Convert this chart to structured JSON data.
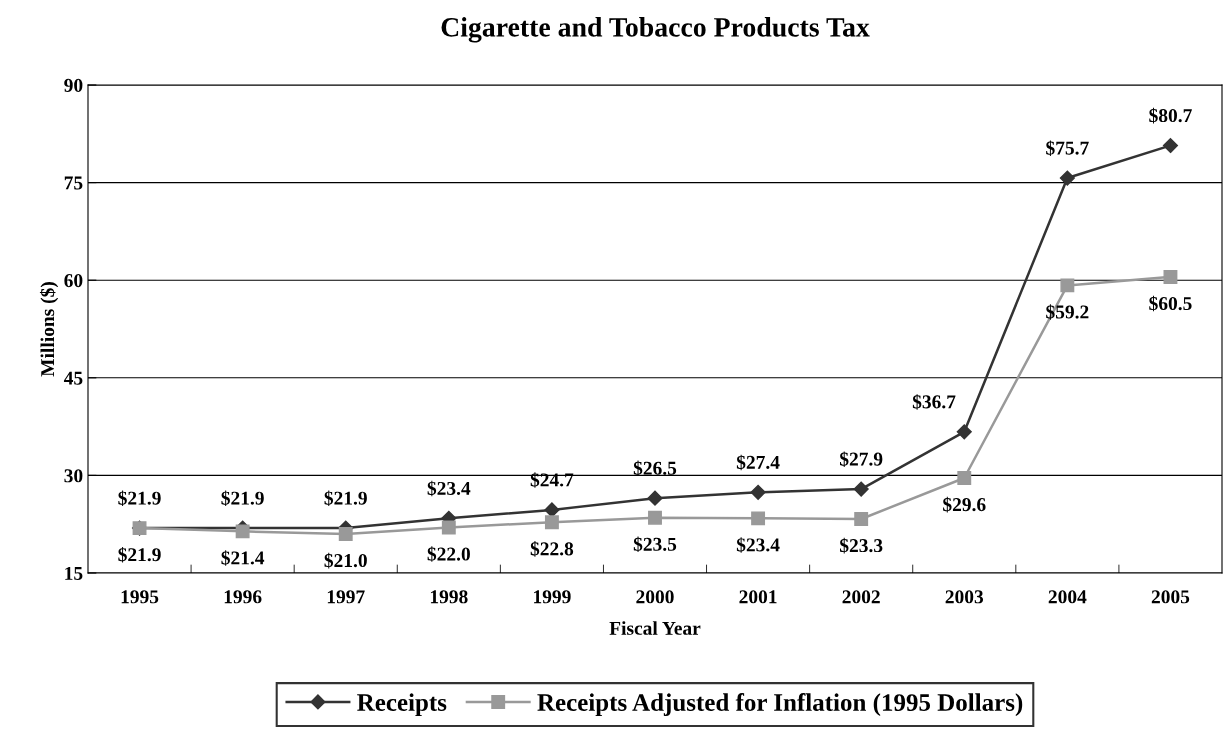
{
  "chart_data": {
    "type": "line",
    "title": "Cigarette and Tobacco Products Tax",
    "xlabel": "Fiscal Year",
    "ylabel": "Millions ($)",
    "categories": [
      "1995",
      "1996",
      "1997",
      "1998",
      "1999",
      "2000",
      "2001",
      "2002",
      "2003",
      "2004",
      "2005"
    ],
    "series": [
      {
        "name": "Receipts",
        "color": "#333333",
        "marker": "diamond",
        "values": [
          21.9,
          21.9,
          21.9,
          23.4,
          24.7,
          26.5,
          27.4,
          27.9,
          36.7,
          75.7,
          80.7
        ],
        "value_labels": [
          "$21.9",
          "$21.9",
          "$21.9",
          "$23.4",
          "$24.7",
          "$26.5",
          "$27.4",
          "$27.9",
          "$36.7",
          "$75.7",
          "$80.7"
        ]
      },
      {
        "name": "Receipts Adjusted for Inflation (1995 Dollars)",
        "color": "#999999",
        "marker": "square",
        "values": [
          21.9,
          21.4,
          21.0,
          22.0,
          22.8,
          23.5,
          23.4,
          23.3,
          29.6,
          59.2,
          60.5
        ],
        "value_labels": [
          "$21.9",
          "$21.4",
          "$21.0",
          "$22.0",
          "$22.8",
          "$23.5",
          "$23.4",
          "$23.3",
          "$29.6",
          "$59.2",
          "$60.5"
        ]
      }
    ],
    "ylim": [
      15,
      90
    ],
    "yticks": [
      15,
      30,
      45,
      60,
      75,
      90
    ],
    "grid": "y",
    "legend": "bottom",
    "line_style": "solid"
  }
}
